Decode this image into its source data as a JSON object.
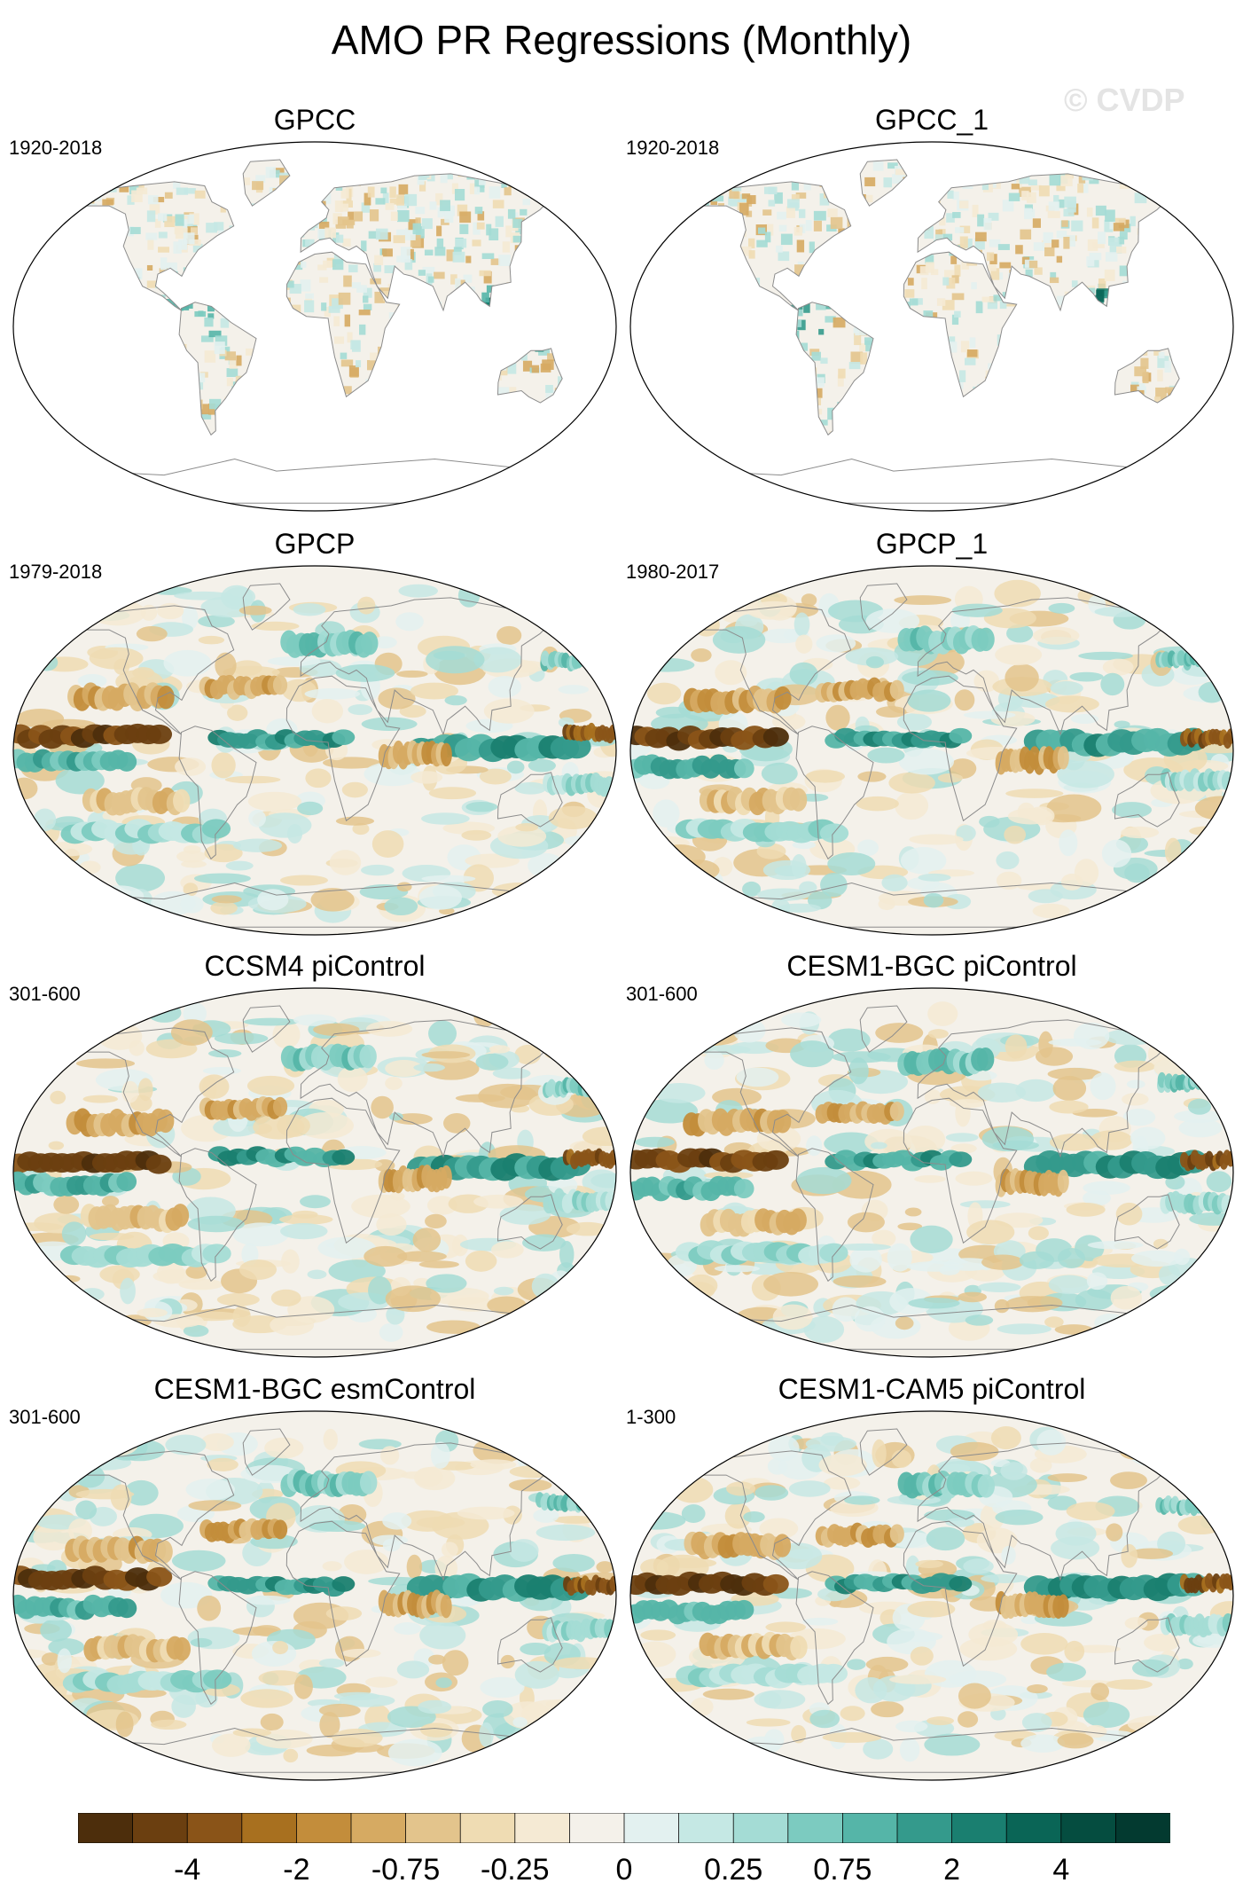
{
  "title": "AMO PR Regressions (Monthly)",
  "watermark": "© CVDP",
  "panels": [
    {
      "title": "GPCC",
      "period": "1920-2018",
      "kind": "land"
    },
    {
      "title": "GPCC_1",
      "period": "1920-2018",
      "kind": "land"
    },
    {
      "title": "GPCP",
      "period": "1979-2018",
      "kind": "full"
    },
    {
      "title": "GPCP_1",
      "period": "1980-2017",
      "kind": "full"
    },
    {
      "title": "CCSM4 piControl",
      "period": "301-600",
      "kind": "full"
    },
    {
      "title": "CESM1-BGC piControl",
      "period": "301-600",
      "kind": "full"
    },
    {
      "title": "CESM1-BGC esmControl",
      "period": "301-600",
      "kind": "full"
    },
    {
      "title": "CESM1-CAM5 piControl",
      "period": "1-300",
      "kind": "full"
    }
  ],
  "colorbar": {
    "colors": [
      "#4d2e0c",
      "#6b3f10",
      "#8a5418",
      "#a8701f",
      "#c38d3b",
      "#d6aa62",
      "#e3c48c",
      "#efdcb3",
      "#f5ead4",
      "#f4f1ea",
      "#e3f1f0",
      "#c5e8e4",
      "#a4dcd5",
      "#7ccbc0",
      "#55b5a8",
      "#349a8c",
      "#1a7f70",
      "#0a6556",
      "#054d40",
      "#033a30"
    ],
    "labels": [
      "-4",
      "-2",
      "-0.75",
      "-0.25",
      "0",
      "0.25",
      "0.75",
      "2",
      "4"
    ]
  }
}
